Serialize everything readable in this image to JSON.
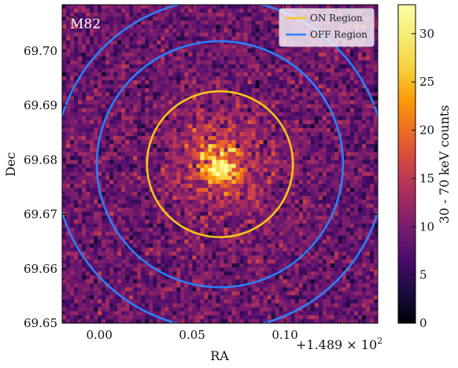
{
  "chart_data": {
    "type": "heatmap",
    "title": "",
    "annotation": "M82",
    "xlabel": "RA",
    "ylabel": "Dec",
    "x_offset_label": "+1.489 × 10",
    "x_offset_exponent": "2",
    "xlim": [
      -0.02,
      0.15
    ],
    "ylim": [
      69.65,
      69.7085
    ],
    "xticks": [
      {
        "value": 0.0,
        "label": "0.00"
      },
      {
        "value": 0.05,
        "label": "0.05"
      },
      {
        "value": 0.1,
        "label": "0.10"
      }
    ],
    "yticks": [
      {
        "value": 69.65,
        "label": "69.65"
      },
      {
        "value": 69.66,
        "label": "69.66"
      },
      {
        "value": 69.67,
        "label": "69.67"
      },
      {
        "value": 69.68,
        "label": "69.68"
      },
      {
        "value": 69.69,
        "label": "69.69"
      },
      {
        "value": 69.7,
        "label": "69.70"
      }
    ],
    "source_center": {
      "x": 0.065,
      "y": 69.6792
    },
    "background_counts": 9,
    "peak_counts": 33,
    "regions": [
      {
        "name": "ON Region",
        "color": "#f5c518",
        "shape": "circle",
        "center_x": 0.065,
        "center_y": 69.6792,
        "radius_dec": 0.0134
      },
      {
        "name": "OFF Region",
        "color": "#2d7ff9",
        "shape": "annulus",
        "center_x": 0.065,
        "center_y": 69.6792,
        "inner_radius_dec": 0.0226,
        "outer_radius_dec": 0.0303
      }
    ],
    "legend": {
      "placement": "top-right",
      "entries": [
        "ON Region",
        "OFF Region"
      ]
    },
    "colorbar": {
      "label": "30 - 70 keV counts",
      "colormap": "inferno",
      "range": [
        0,
        33
      ],
      "ticks": [
        {
          "value": 0,
          "label": "0"
        },
        {
          "value": 5,
          "label": "5"
        },
        {
          "value": 10,
          "label": "10"
        },
        {
          "value": 15,
          "label": "15"
        },
        {
          "value": 20,
          "label": "20"
        },
        {
          "value": 25,
          "label": "25"
        },
        {
          "value": 30,
          "label": "30"
        }
      ]
    }
  }
}
